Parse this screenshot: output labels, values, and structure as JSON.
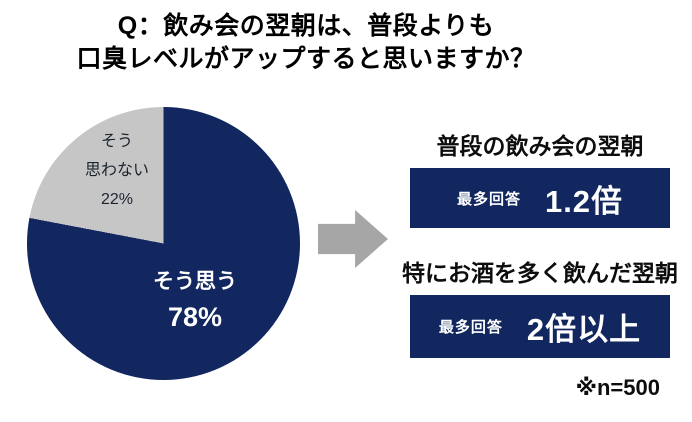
{
  "title": {
    "line1": "Q：飲み会の翌朝は、普段よりも",
    "line2": "口臭レベルがアップすると思いますか？"
  },
  "chart_data": {
    "type": "pie",
    "title": "Q：飲み会の翌朝は、普段よりも口臭レベルがアップすると思いますか？",
    "labels": [
      "そう思う",
      "そう思わない"
    ],
    "values": [
      78,
      22
    ],
    "unit": "%",
    "colors": [
      "#12275F",
      "#C6C6C6"
    ],
    "start_angle": "top, clockwise",
    "n": 500
  },
  "pie": {
    "yes_label": "そう思う",
    "yes_pct": "78%",
    "no_line1": "そう",
    "no_line2": "思わない",
    "no_pct": "22%"
  },
  "results": [
    {
      "heading": "普段の飲み会の翌朝",
      "badge": "最多回答",
      "value": "1.2倍"
    },
    {
      "heading": "特にお酒を多く飲んだ翌朝",
      "badge": "最多回答",
      "value": "2倍以上"
    }
  ],
  "footnote": "※n=500",
  "colors": {
    "navy": "#12275F",
    "slice_gray": "#C6C6C6",
    "arrow_gray": "#A6A6A6"
  }
}
